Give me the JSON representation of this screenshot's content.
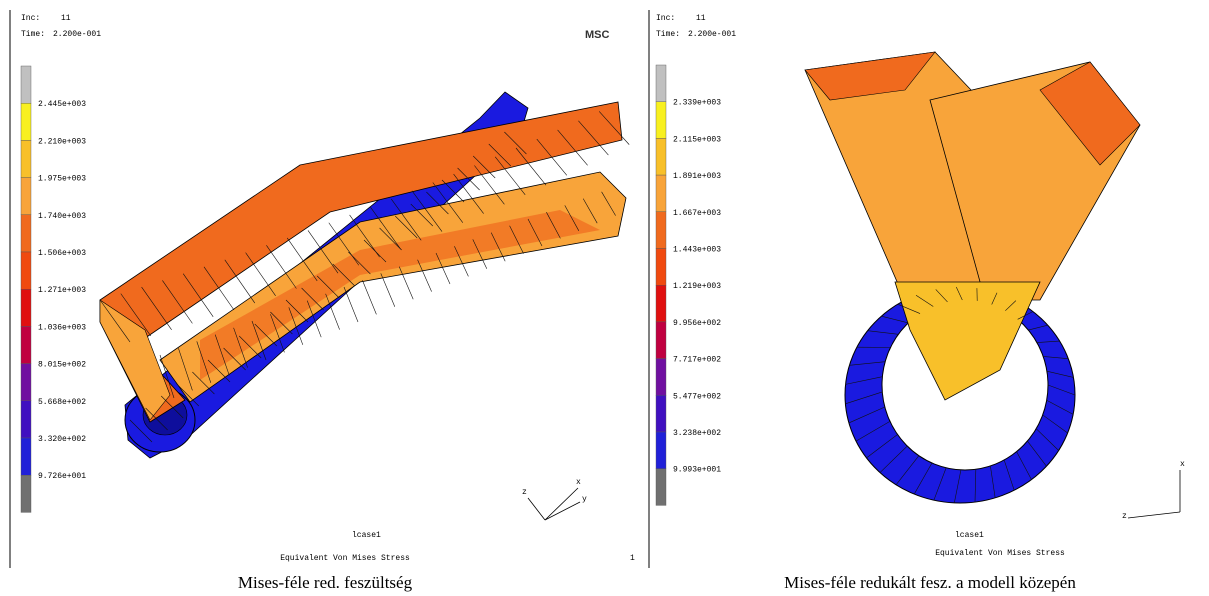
{
  "panels": [
    {
      "inc_label": "Inc:",
      "inc": "11",
      "time_label": "Time:",
      "time": "2.200e-001",
      "logo": "MSC",
      "legend": [
        "2.445e+003",
        "2.210e+003",
        "1.975e+003",
        "1.740e+003",
        "1.506e+003",
        "1.271e+003",
        "1.036e+003",
        "8.015e+002",
        "5.668e+002",
        "3.320e+002",
        "9.726e+001"
      ],
      "axes": [
        "z",
        "x",
        "y"
      ],
      "lcase": "lcase1",
      "title": "Equivalent Von Mises Stress",
      "page": "1",
      "caption": "Mises-féle red. feszültség"
    },
    {
      "inc_label": "Inc:",
      "inc": "11",
      "time_label": "Time:",
      "time": "2.200e-001",
      "legend": [
        "2.339e+003",
        "2.115e+003",
        "1.891e+003",
        "1.667e+003",
        "1.443e+003",
        "1.219e+003",
        "9.956e+002",
        "7.717e+002",
        "5.477e+002",
        "3.238e+002",
        "9.993e+001"
      ],
      "axes": [
        "x",
        "z"
      ],
      "lcase": "lcase1",
      "title": "Equivalent Von Mises Stress",
      "caption": "Mises-féle redukált fesz. a modell közepén"
    }
  ]
}
